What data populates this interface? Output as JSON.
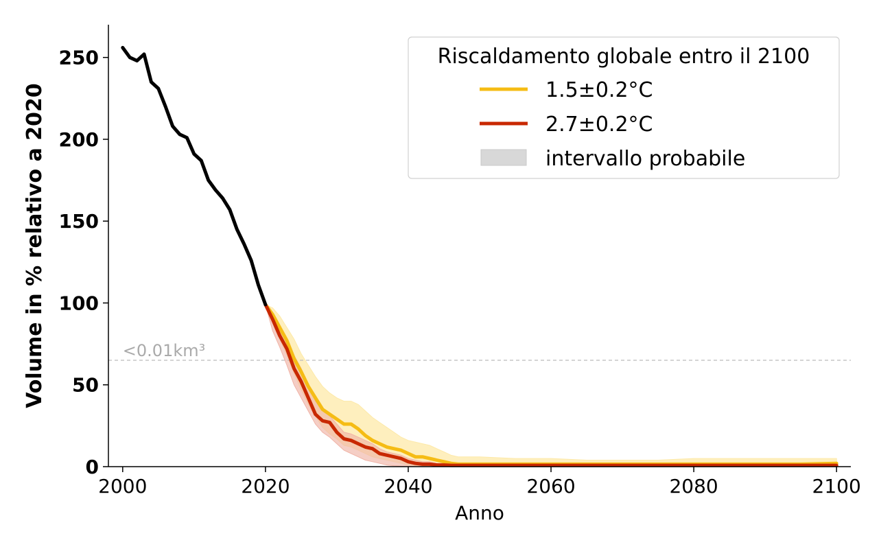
{
  "chart_data": {
    "type": "line",
    "xlabel": "Anno",
    "ylabel": "Volume in % relativo a 2020",
    "xlim": [
      1998,
      2102
    ],
    "ylim": [
      0,
      270
    ],
    "xticks": [
      2000,
      2020,
      2040,
      2060,
      2080,
      2100
    ],
    "yticks": [
      0,
      50,
      100,
      150,
      200,
      250
    ],
    "grid": false,
    "legend": {
      "placement": "top-right",
      "title": "Riscaldamento globale entro il 2100",
      "entries": [
        "1.5±0.2°C",
        "2.7±0.2°C",
        "intervallo probabile"
      ]
    },
    "threshold": {
      "y": 65,
      "label": "<0.01km³"
    },
    "colors": {
      "historical": "#000000",
      "ssp_low": "#f5bc14",
      "ssp_high": "#c82800",
      "band_low": "#fde9a8",
      "band_high": "#f0b3a6",
      "band_legend": "#d8d8d8",
      "threshold": "#bbbbbb"
    },
    "historical": {
      "x": [
        2000,
        2001,
        2002,
        2003,
        2004,
        2005,
        2006,
        2007,
        2008,
        2009,
        2010,
        2011,
        2012,
        2013,
        2014,
        2015,
        2016,
        2017,
        2018,
        2019,
        2020
      ],
      "y": [
        256,
        250,
        248,
        252,
        235,
        231,
        220,
        208,
        203,
        201,
        191,
        187,
        175,
        169,
        164,
        157,
        145,
        136,
        126,
        111,
        99
      ]
    },
    "series": [
      {
        "name": "1.5±0.2°C",
        "x": [
          2020,
          2021,
          2022,
          2023,
          2024,
          2025,
          2026,
          2027,
          2028,
          2029,
          2030,
          2031,
          2032,
          2033,
          2034,
          2035,
          2036,
          2037,
          2038,
          2039,
          2040,
          2041,
          2042,
          2043,
          2044,
          2045,
          2046,
          2047,
          2048,
          2049,
          2050,
          2055,
          2060,
          2065,
          2070,
          2075,
          2080,
          2085,
          2090,
          2095,
          2100
        ],
        "y": [
          99,
          93,
          85,
          77,
          66,
          58,
          49,
          42,
          35,
          32,
          29,
          26,
          26,
          23,
          19,
          16,
          14,
          12,
          11,
          10,
          8,
          6,
          6,
          5,
          4,
          3,
          2,
          1.5,
          1.5,
          1.5,
          1.5,
          1.5,
          1.5,
          1.5,
          1.5,
          1.5,
          1.5,
          1.5,
          1.5,
          1.5,
          2
        ],
        "lower": [
          99,
          88,
          78,
          68,
          57,
          47,
          38,
          31,
          24,
          20,
          17,
          13,
          12,
          10,
          8,
          6,
          5,
          4,
          3,
          2,
          1,
          0.5,
          0.5,
          0.3,
          0.2,
          0.1,
          0.1,
          0.1,
          0.1,
          0.1,
          0.1,
          0.1,
          0.1,
          0.1,
          0.1,
          0.1,
          0.1,
          0.1,
          0.1,
          0.1,
          0.1
        ],
        "upper": [
          99,
          97,
          92,
          85,
          78,
          69,
          62,
          55,
          49,
          45,
          42,
          40,
          40,
          38,
          34,
          30,
          27,
          24,
          21,
          18,
          16,
          15,
          14,
          13,
          11,
          9,
          7,
          6,
          6,
          6,
          6,
          5,
          5,
          4,
          4,
          4,
          5,
          5,
          5,
          5,
          5
        ]
      },
      {
        "name": "2.7±0.2°C",
        "x": [
          2020,
          2021,
          2022,
          2023,
          2024,
          2025,
          2026,
          2027,
          2028,
          2029,
          2030,
          2031,
          2032,
          2033,
          2034,
          2035,
          2036,
          2037,
          2038,
          2039,
          2040,
          2041,
          2042,
          2043,
          2044,
          2045,
          2046,
          2047,
          2048,
          2049,
          2050,
          2055,
          2060,
          2065,
          2070,
          2075,
          2080,
          2085,
          2090,
          2095,
          2100
        ],
        "y": [
          99,
          90,
          80,
          72,
          60,
          52,
          42,
          32,
          28,
          27,
          21,
          17,
          16,
          14,
          12,
          11,
          8,
          7,
          6,
          5,
          3,
          2,
          1.5,
          1.5,
          1,
          1,
          0.8,
          0.8,
          0.8,
          0.8,
          0.8,
          0.8,
          0.8,
          0.8,
          0.8,
          0.8,
          0.8,
          0.8,
          0.8,
          0.8,
          0.8
        ],
        "lower": [
          99,
          83,
          73,
          62,
          50,
          42,
          34,
          26,
          21,
          18,
          14,
          10,
          8,
          6,
          4,
          3,
          2,
          1,
          0.5,
          0.3,
          0.2,
          0.1,
          0.1,
          0.1,
          0.1,
          0.1,
          0.1,
          0.1,
          0.1,
          0.1,
          0.1,
          0.1,
          0.1,
          0.1,
          0.1,
          0.1,
          0.1,
          0.1,
          0.1,
          0.1,
          0.1
        ],
        "upper": [
          99,
          93,
          86,
          78,
          68,
          60,
          50,
          40,
          34,
          31,
          26,
          21,
          20,
          18,
          16,
          14,
          11,
          9,
          8,
          7,
          5,
          4,
          3,
          3,
          2,
          2,
          1.5,
          1.5,
          1.5,
          1.5,
          1.5,
          1.5,
          1.5,
          1.5,
          1.5,
          1.5,
          1.5,
          1.5,
          1.5,
          1.5,
          1.5
        ]
      }
    ]
  }
}
